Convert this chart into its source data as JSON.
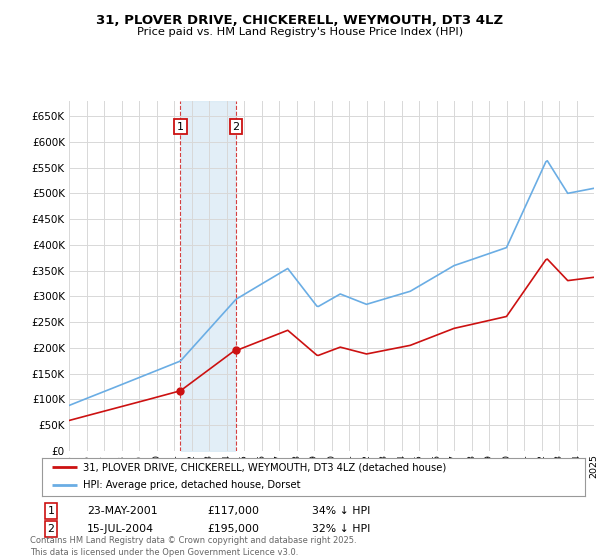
{
  "title": "31, PLOVER DRIVE, CHICKERELL, WEYMOUTH, DT3 4LZ",
  "subtitle": "Price paid vs. HM Land Registry's House Price Index (HPI)",
  "hpi_label": "HPI: Average price, detached house, Dorset",
  "property_label": "31, PLOVER DRIVE, CHICKERELL, WEYMOUTH, DT3 4LZ (detached house)",
  "footer": "Contains HM Land Registry data © Crown copyright and database right 2025.\nThis data is licensed under the Open Government Licence v3.0.",
  "sale1_date": "23-MAY-2001",
  "sale1_price": "£117,000",
  "sale1_hpi": "34% ↓ HPI",
  "sale2_date": "15-JUL-2004",
  "sale2_price": "£195,000",
  "sale2_hpi": "32% ↓ HPI",
  "sale1_year": 2001.37,
  "sale2_year": 2004.54,
  "sale1_price_val": 117000,
  "sale2_price_val": 195000,
  "ylim": [
    0,
    680000
  ],
  "yticks": [
    0,
    50000,
    100000,
    150000,
    200000,
    250000,
    300000,
    350000,
    400000,
    450000,
    500000,
    550000,
    600000,
    650000
  ],
  "hpi_color": "#6aade4",
  "property_color": "#cc1111",
  "shade_color": "#d6e8f5",
  "background_color": "#ffffff",
  "grid_color": "#d8d8d8"
}
